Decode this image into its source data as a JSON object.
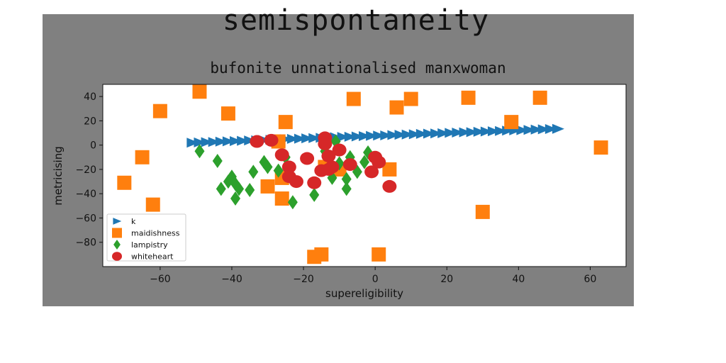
{
  "chart_data": {
    "type": "scatter",
    "title": "semispontaneity",
    "subtitle": "bufonite unnationalised manxwoman",
    "xlabel": "supereligibility",
    "ylabel": "metricising",
    "xlim": [
      -76,
      70
    ],
    "ylim": [
      -100,
      50
    ],
    "xticks": [
      -60,
      -40,
      -20,
      0,
      20,
      40,
      60
    ],
    "yticks": [
      40,
      20,
      0,
      -20,
      -40,
      -60,
      -80
    ],
    "legend_position": "lower-left",
    "grid": false,
    "series": [
      {
        "name": "k",
        "marker": "triangle-right",
        "color": "#1f77b4",
        "points": [
          [
            -51,
            2
          ],
          [
            -49,
            2.2
          ],
          [
            -47,
            2.4
          ],
          [
            -45,
            2.6
          ],
          [
            -43,
            2.9
          ],
          [
            -41,
            3.1
          ],
          [
            -39,
            3.3
          ],
          [
            -37,
            3.5
          ],
          [
            -35,
            3.8
          ],
          [
            -33,
            4.0
          ],
          [
            -31,
            4.2
          ],
          [
            -29,
            4.4
          ],
          [
            -27,
            4.7
          ],
          [
            -25,
            4.9
          ],
          [
            -23,
            5.1
          ],
          [
            -21,
            5.3
          ],
          [
            -19,
            5.6
          ],
          [
            -17,
            5.8
          ],
          [
            -15,
            6.0
          ],
          [
            -13,
            6.2
          ],
          [
            -11,
            6.5
          ],
          [
            -9,
            6.7
          ],
          [
            -7,
            6.9
          ],
          [
            -5,
            7.1
          ],
          [
            -3,
            7.4
          ],
          [
            -1,
            7.6
          ],
          [
            1,
            7.8
          ],
          [
            3,
            8.0
          ],
          [
            5,
            8.3
          ],
          [
            7,
            8.5
          ],
          [
            9,
            8.7
          ],
          [
            11,
            8.9
          ],
          [
            13,
            9.2
          ],
          [
            15,
            9.4
          ],
          [
            17,
            9.6
          ],
          [
            19,
            9.8
          ],
          [
            21,
            10.1
          ],
          [
            23,
            10.3
          ],
          [
            25,
            10.5
          ],
          [
            27,
            10.7
          ],
          [
            29,
            11.0
          ],
          [
            31,
            11.2
          ],
          [
            33,
            11.4
          ],
          [
            35,
            11.6
          ],
          [
            37,
            11.9
          ],
          [
            39,
            12.1
          ],
          [
            41,
            12.3
          ],
          [
            43,
            12.5
          ],
          [
            45,
            12.8
          ],
          [
            47,
            13.0
          ],
          [
            49,
            13.2
          ],
          [
            51,
            13.4
          ]
        ]
      },
      {
        "name": "maidishness",
        "marker": "square",
        "color": "#ff7f0e",
        "points": [
          [
            -49,
            44
          ],
          [
            -60,
            28
          ],
          [
            -41,
            26
          ],
          [
            -25,
            19
          ],
          [
            -6,
            38
          ],
          [
            6,
            31
          ],
          [
            10,
            38
          ],
          [
            26,
            39
          ],
          [
            46,
            39
          ],
          [
            38,
            19
          ],
          [
            63,
            -2
          ],
          [
            -65,
            -10
          ],
          [
            -70,
            -31
          ],
          [
            -62,
            -49
          ],
          [
            -30,
            -34
          ],
          [
            -26,
            -27
          ],
          [
            -26,
            -44
          ],
          [
            -14,
            -18
          ],
          [
            -10,
            -20
          ],
          [
            -27,
            3
          ],
          [
            4,
            -20
          ],
          [
            -15,
            -90
          ],
          [
            -17,
            -92
          ],
          [
            1,
            -90
          ],
          [
            30,
            -55
          ]
        ]
      },
      {
        "name": "lampistry",
        "marker": "diamond",
        "color": "#2ca02c",
        "points": [
          [
            -49,
            -5
          ],
          [
            -44,
            -13
          ],
          [
            -43,
            -36
          ],
          [
            -41,
            -30
          ],
          [
            -40,
            -26
          ],
          [
            -39,
            -32
          ],
          [
            -38,
            -36
          ],
          [
            -39,
            -44
          ],
          [
            -35,
            -37
          ],
          [
            -34,
            -22
          ],
          [
            -31,
            -14
          ],
          [
            -30,
            -18
          ],
          [
            -27,
            -21
          ],
          [
            -25,
            -10
          ],
          [
            -23,
            -47
          ],
          [
            -17,
            -41
          ],
          [
            -12,
            -27
          ],
          [
            -10,
            -15
          ],
          [
            -8,
            -28
          ],
          [
            -8,
            -36
          ],
          [
            -7,
            -10
          ],
          [
            -5,
            -22
          ],
          [
            -3,
            -14
          ],
          [
            -2,
            -6
          ],
          [
            -11,
            3
          ],
          [
            -14,
            -5
          ]
        ]
      },
      {
        "name": "whiteheart",
        "marker": "circle",
        "color": "#d62728",
        "points": [
          [
            -33,
            3
          ],
          [
            -29,
            4
          ],
          [
            -26,
            -8
          ],
          [
            -24,
            -18
          ],
          [
            -24,
            -26
          ],
          [
            -22,
            -30
          ],
          [
            -19,
            -11
          ],
          [
            -17,
            -31
          ],
          [
            -15,
            -21
          ],
          [
            -13,
            -20
          ],
          [
            -14,
            6
          ],
          [
            -14,
            1
          ],
          [
            -13,
            -9
          ],
          [
            -12,
            -18
          ],
          [
            -10,
            -4
          ],
          [
            -7,
            -16
          ],
          [
            -1,
            -22
          ],
          [
            0,
            -10
          ],
          [
            1,
            -14
          ],
          [
            4,
            -34
          ]
        ]
      }
    ]
  }
}
